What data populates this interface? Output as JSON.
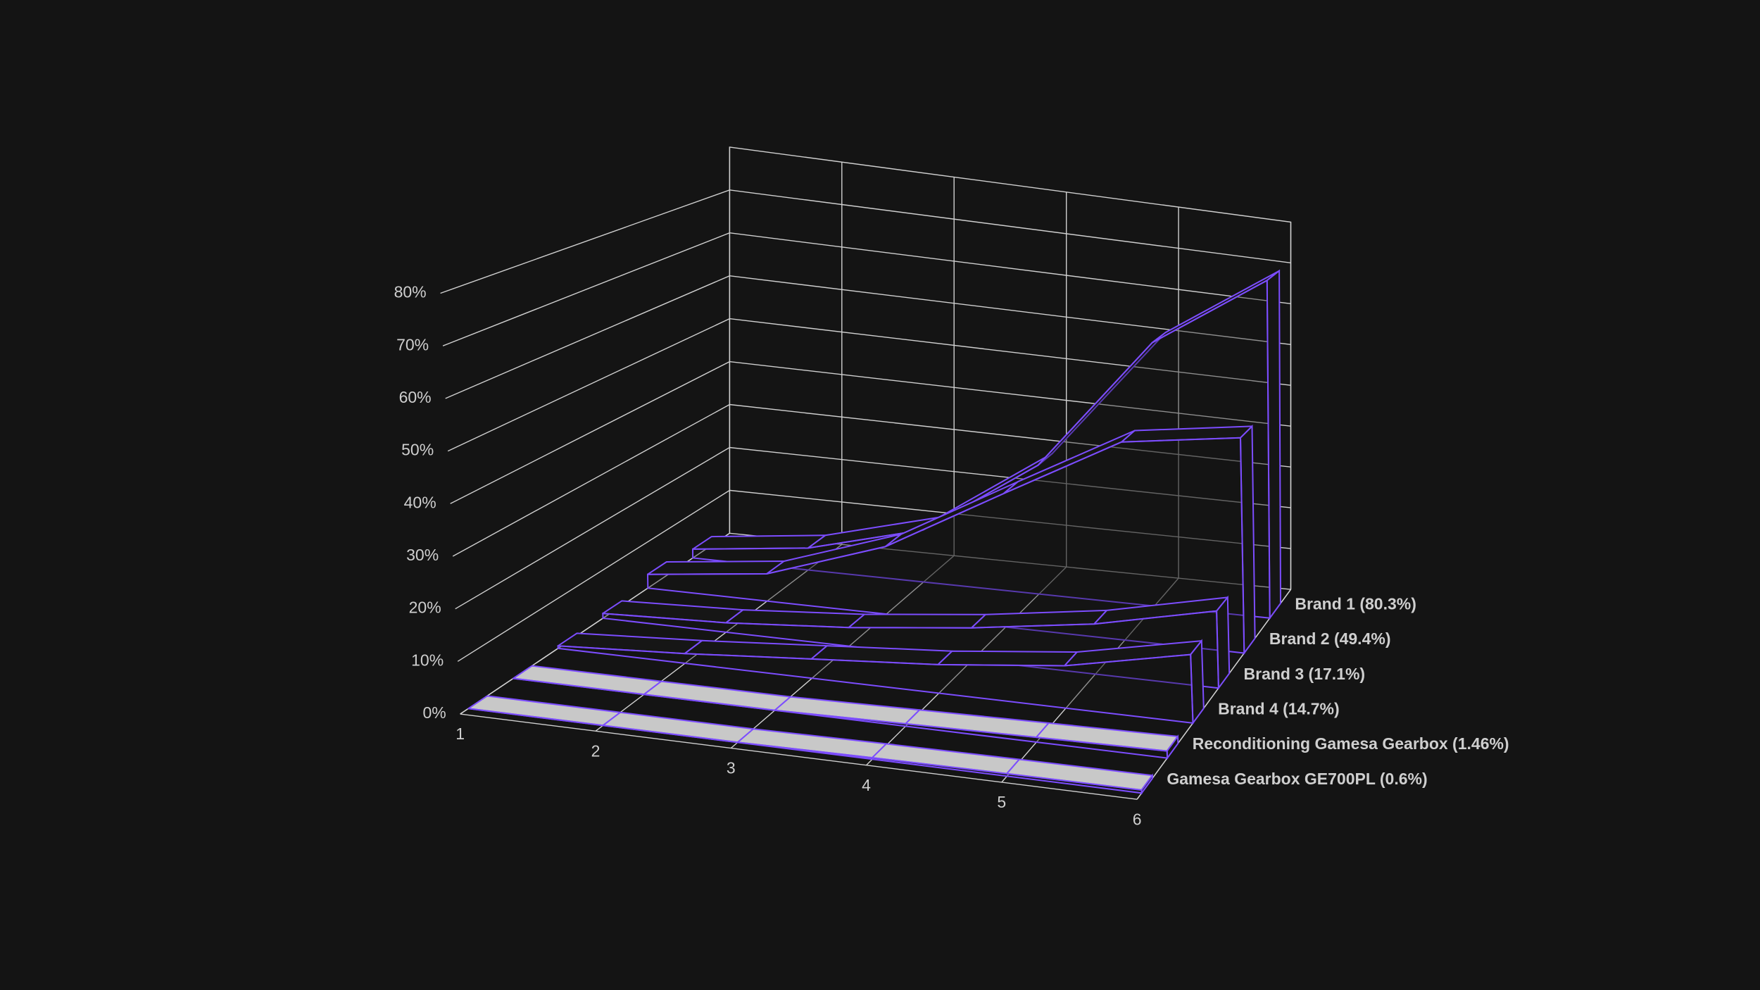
{
  "chart_data": {
    "type": "area3d",
    "x": [
      1,
      2,
      3,
      4,
      5,
      6
    ],
    "xlim": [
      1,
      6
    ],
    "xticks": [
      1,
      2,
      3,
      4,
      5,
      6
    ],
    "ylim": [
      0,
      90
    ],
    "yticks": [
      {
        "value": 0,
        "label": "0%"
      },
      {
        "value": 10,
        "label": "10%"
      },
      {
        "value": 20,
        "label": "20%"
      },
      {
        "value": 30,
        "label": "30%"
      },
      {
        "value": 40,
        "label": "40%"
      },
      {
        "value": 50,
        "label": "50%"
      },
      {
        "value": 60,
        "label": "60%"
      },
      {
        "value": 70,
        "label": "70%"
      },
      {
        "value": 80,
        "label": "80%"
      }
    ],
    "grid": true,
    "series": [
      {
        "name": "Brand 1 (80.3%)",
        "color": "#7c4dff",
        "fill": "#161616",
        "values": [
          2,
          5,
          12,
          30,
          62,
          80.3
        ]
      },
      {
        "name": "Brand 2 (49.4%)",
        "color": "#7c4dff",
        "fill": "#161616",
        "values": [
          3,
          6,
          15,
          30,
          45,
          49.4
        ]
      },
      {
        "name": "Brand 3 (17.1%)",
        "color": "#7c4dff",
        "fill": "#161616",
        "values": [
          1,
          2,
          4,
          7,
          11,
          17.1
        ]
      },
      {
        "name": "Brand 4 (14.7%)",
        "color": "#7c4dff",
        "fill": "#161616",
        "values": [
          0.5,
          2,
          4,
          6,
          9,
          14.7
        ]
      },
      {
        "name": "Reconditioning Gamesa Gearbox (1.46%)",
        "color": "#7c4dff",
        "fill": "#c8c8c8",
        "values": [
          0,
          0,
          0,
          0.5,
          1,
          1.46
        ]
      },
      {
        "name": "Gamesa Gearbox GE700PL (0.6%)",
        "color": "#7c4dff",
        "fill": "#c8c8c8",
        "values": [
          0,
          0,
          0,
          0.3,
          0.5,
          0.6
        ]
      }
    ]
  }
}
